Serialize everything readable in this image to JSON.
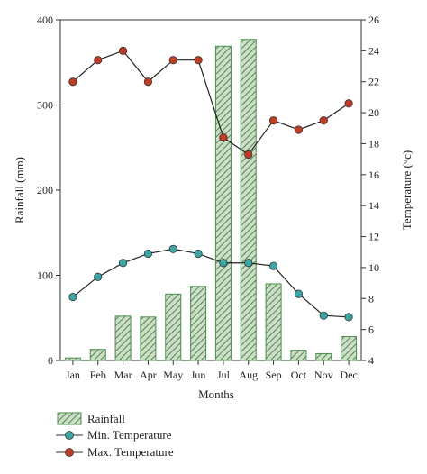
{
  "chart_data": {
    "type": "bar+line",
    "title": "",
    "xlabel": "Months",
    "ylabel": "Rainfall (mm)",
    "y2label": "Temperature (°c)",
    "categories": [
      "Jan",
      "Feb",
      "Mar",
      "Apr",
      "May",
      "Jun",
      "Jul",
      "Aug",
      "Sep",
      "Oct",
      "Nov",
      "Dec"
    ],
    "ylim": [
      0,
      400
    ],
    "yticks": [
      0,
      100,
      200,
      300,
      400
    ],
    "y2lim": [
      4,
      26
    ],
    "y2ticks": [
      4,
      6,
      8,
      10,
      12,
      14,
      16,
      18,
      20,
      22,
      24,
      26
    ],
    "grid": false,
    "legend_position": "bottom-left",
    "series": [
      {
        "name": "Rainfall",
        "kind": "bar",
        "axis": "left",
        "values": [
          3,
          13,
          52,
          51,
          78,
          87,
          369,
          377,
          90,
          12,
          8,
          28
        ],
        "color": "#cfdcca",
        "hatch_color": "#3a8a3a"
      },
      {
        "name": "Min. Temperature",
        "kind": "line",
        "axis": "right",
        "values": [
          8.1,
          9.4,
          10.3,
          10.9,
          11.2,
          10.9,
          10.3,
          10.3,
          10.1,
          8.3,
          6.9,
          6.8
        ],
        "color": "#3aa7a7"
      },
      {
        "name": "Max. Temperature",
        "kind": "line",
        "axis": "right",
        "values": [
          22.0,
          23.4,
          24.0,
          22.0,
          23.4,
          23.4,
          18.4,
          17.3,
          19.5,
          18.9,
          19.5,
          20.6
        ],
        "color": "#c53a22"
      }
    ]
  }
}
